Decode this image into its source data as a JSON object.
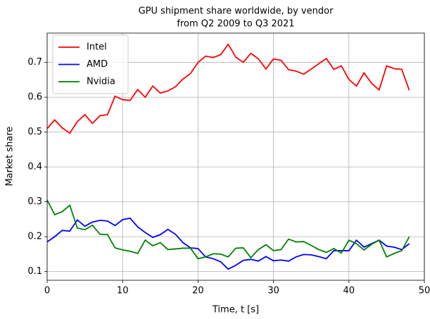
{
  "chart_data": {
    "type": "line",
    "title": "GPU shipment share worldwide, by vendor",
    "subtitle": "from Q2 2009 to Q3 2021",
    "xlabel": "Time, t [s]",
    "ylabel": "Market share",
    "x": [
      0,
      1,
      2,
      3,
      4,
      5,
      6,
      7,
      8,
      9,
      10,
      11,
      12,
      13,
      14,
      15,
      16,
      17,
      18,
      19,
      20,
      21,
      22,
      23,
      24,
      25,
      26,
      27,
      28,
      29,
      30,
      31,
      32,
      33,
      34,
      35,
      36,
      37,
      38,
      39,
      40,
      41,
      42,
      43,
      44,
      45,
      46,
      47,
      48
    ],
    "series": [
      {
        "name": "Intel",
        "color": "#ff0000",
        "values": [
          0.51,
          0.535,
          0.512,
          0.497,
          0.53,
          0.55,
          0.525,
          0.547,
          0.55,
          0.603,
          0.593,
          0.591,
          0.622,
          0.6,
          0.632,
          0.612,
          0.618,
          0.63,
          0.652,
          0.668,
          0.7,
          0.718,
          0.714,
          0.722,
          0.752,
          0.715,
          0.7,
          0.726,
          0.71,
          0.681,
          0.71,
          0.706,
          0.679,
          0.675,
          0.666,
          0.681,
          0.696,
          0.711,
          0.68,
          0.69,
          0.651,
          0.632,
          0.67,
          0.64,
          0.621,
          0.69,
          0.682,
          0.68,
          0.62
        ]
      },
      {
        "name": "AMD",
        "color": "#0000ff",
        "values": [
          0.185,
          0.2,
          0.218,
          0.216,
          0.248,
          0.23,
          0.242,
          0.247,
          0.245,
          0.232,
          0.249,
          0.253,
          0.228,
          0.212,
          0.198,
          0.206,
          0.221,
          0.207,
          0.183,
          0.168,
          0.166,
          0.142,
          0.137,
          0.128,
          0.107,
          0.118,
          0.132,
          0.135,
          0.13,
          0.143,
          0.131,
          0.133,
          0.13,
          0.142,
          0.149,
          0.148,
          0.143,
          0.137,
          0.16,
          0.16,
          0.16,
          0.19,
          0.17,
          0.18,
          0.19,
          0.173,
          0.17,
          0.163,
          0.18
        ]
      },
      {
        "name": "Nvidia",
        "color": "#008000",
        "values": [
          0.305,
          0.263,
          0.272,
          0.29,
          0.225,
          0.22,
          0.233,
          0.207,
          0.206,
          0.168,
          0.162,
          0.158,
          0.152,
          0.19,
          0.174,
          0.183,
          0.163,
          0.165,
          0.167,
          0.167,
          0.137,
          0.142,
          0.151,
          0.15,
          0.142,
          0.167,
          0.168,
          0.14,
          0.163,
          0.177,
          0.16,
          0.163,
          0.193,
          0.185,
          0.186,
          0.175,
          0.163,
          0.155,
          0.166,
          0.153,
          0.19,
          0.18,
          0.162,
          0.178,
          0.19,
          0.142,
          0.152,
          0.16,
          0.2
        ]
      }
    ],
    "xlim": [
      0,
      50
    ],
    "xticks": [
      0,
      10,
      20,
      30,
      40,
      50
    ],
    "ylim": [
      0.075,
      0.784
    ],
    "yticks": [
      0.1,
      0.2,
      0.3,
      0.4,
      0.5,
      0.6,
      0.7
    ],
    "grid": true,
    "legend": "upper left"
  }
}
